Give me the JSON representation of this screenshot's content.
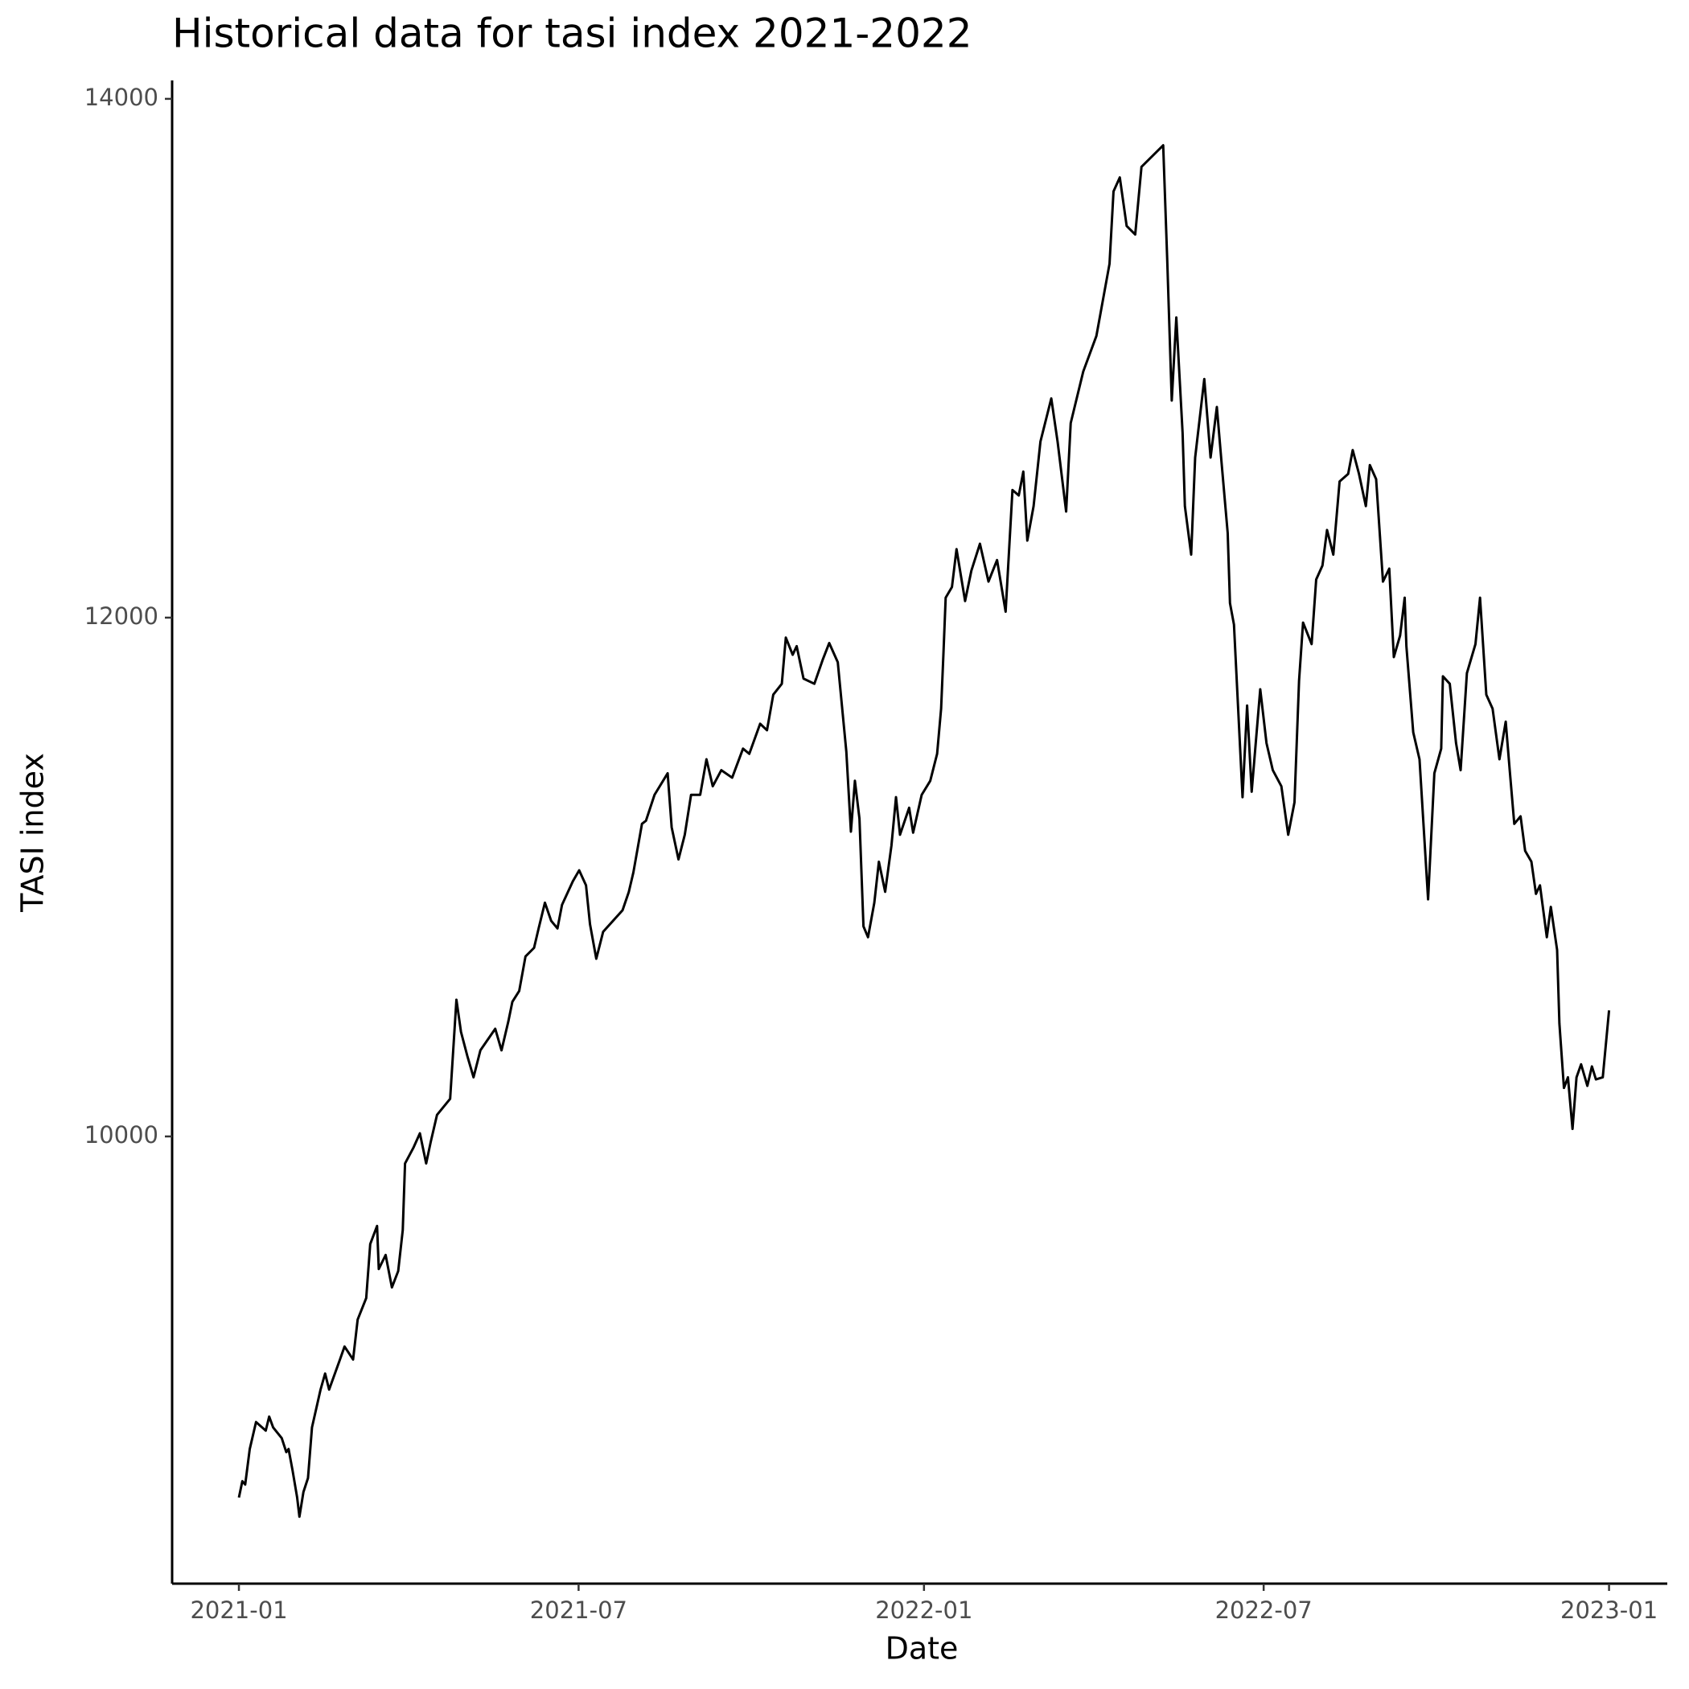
{
  "chart_data": {
    "type": "line",
    "title": "Historical data for tasi index 2021-2022",
    "x_label": "Date",
    "y_label": "TASI index",
    "color": "#000000",
    "grid": false,
    "xlim": [
      -1.17,
      25.02
    ],
    "xticks": [
      {
        "value": 0,
        "label": "2021-01"
      },
      {
        "value": 5.95,
        "label": "2021-07"
      },
      {
        "value": 12,
        "label": "2022-01"
      },
      {
        "value": 17.95,
        "label": "2022-07"
      },
      {
        "value": 24,
        "label": "2023-01"
      }
    ],
    "ylim": [
      8276,
      14071
    ],
    "yticks": [
      10000,
      12000,
      14000
    ],
    "x": [
      0.0,
      0.06,
      0.11,
      0.19,
      0.3,
      0.47,
      0.53,
      0.6,
      0.75,
      0.83,
      0.87,
      0.94,
      1.02,
      1.06,
      1.13,
      1.21,
      1.28,
      1.43,
      1.51,
      1.58,
      1.77,
      1.85,
      2.0,
      2.08,
      2.23,
      2.3,
      2.42,
      2.45,
      2.57,
      2.68,
      2.79,
      2.87,
      2.91,
      3.06,
      3.17,
      3.28,
      3.36,
      3.47,
      3.7,
      3.81,
      3.89,
      4.0,
      4.11,
      4.23,
      4.49,
      4.6,
      4.72,
      4.79,
      4.91,
      5.02,
      5.17,
      5.25,
      5.36,
      5.47,
      5.58,
      5.66,
      5.85,
      5.96,
      6.08,
      6.15,
      6.26,
      6.38,
      6.72,
      6.83,
      6.91,
      7.06,
      7.13,
      7.28,
      7.51,
      7.58,
      7.7,
      7.81,
      7.92,
      8.08,
      8.19,
      8.3,
      8.45,
      8.64,
      8.83,
      8.94,
      9.13,
      9.25,
      9.36,
      9.51,
      9.58,
      9.7,
      9.77,
      9.89,
      10.08,
      10.23,
      10.34,
      10.49,
      10.64,
      10.72,
      10.79,
      10.87,
      10.94,
      11.02,
      11.13,
      11.21,
      11.32,
      11.43,
      11.51,
      11.58,
      11.74,
      11.81,
      11.96,
      12.11,
      12.23,
      12.3,
      12.34,
      12.38,
      12.49,
      12.57,
      12.72,
      12.83,
      12.98,
      13.13,
      13.28,
      13.43,
      13.55,
      13.66,
      13.74,
      13.81,
      13.92,
      14.04,
      14.23,
      14.34,
      14.49,
      14.57,
      14.79,
      15.02,
      15.25,
      15.32,
      15.43,
      15.55,
      15.7,
      15.81,
      16.19,
      16.26,
      16.34,
      16.42,
      16.53,
      16.57,
      16.68,
      16.75,
      16.91,
      17.02,
      17.13,
      17.21,
      17.32,
      17.36,
      17.43,
      17.58,
      17.66,
      17.74,
      17.89,
      18.0,
      18.11,
      18.26,
      18.38,
      18.49,
      18.57,
      18.64,
      18.79,
      18.87,
      18.98,
      19.06,
      19.17,
      19.28,
      19.43,
      19.51,
      19.62,
      19.74,
      19.81,
      19.92,
      20.04,
      20.15,
      20.23,
      20.34,
      20.42,
      20.45,
      20.57,
      20.68,
      20.83,
      20.94,
      21.06,
      21.09,
      21.21,
      21.32,
      21.4,
      21.51,
      21.66,
      21.74,
      21.85,
      21.96,
      22.08,
      22.19,
      22.26,
      22.34,
      22.45,
      22.53,
      22.64,
      22.72,
      22.79,
      22.91,
      22.98,
      23.09,
      23.13,
      23.21,
      23.28,
      23.36,
      23.43,
      23.51,
      23.62,
      23.7,
      23.77,
      23.89,
      24.0
    ],
    "values": [
      8608,
      8671,
      8658,
      8795,
      8899,
      8866,
      8920,
      8878,
      8837,
      8783,
      8795,
      8712,
      8608,
      8534,
      8629,
      8683,
      8878,
      9024,
      9086,
      9024,
      9140,
      9190,
      9140,
      9294,
      9377,
      9585,
      9655,
      9489,
      9543,
      9418,
      9481,
      9639,
      9896,
      9958,
      10012,
      9896,
      9979,
      10083,
      10145,
      10527,
      10403,
      10311,
      10228,
      10332,
      10415,
      10332,
      10444,
      10519,
      10561,
      10694,
      10727,
      10802,
      10901,
      10831,
      10802,
      10893,
      10984,
      11026,
      10968,
      10818,
      10685,
      10789,
      10872,
      10943,
      11018,
      11205,
      11217,
      11317,
      11400,
      11192,
      11068,
      11163,
      11317,
      11317,
      11454,
      11350,
      11412,
      11383,
      11495,
      11475,
      11591,
      11566,
      11703,
      11745,
      11923,
      11857,
      11890,
      11765,
      11745,
      11840,
      11902,
      11828,
      11483,
      11175,
      11371,
      11225,
      10810,
      10768,
      10901,
      11059,
      10943,
      11121,
      11308,
      11163,
      11267,
      11171,
      11317,
      11371,
      11475,
      11649,
      11857,
      12077,
      12118,
      12264,
      12064,
      12181,
      12285,
      12139,
      12222,
      12023,
      12492,
      12471,
      12563,
      12297,
      12430,
      12679,
      12845,
      12679,
      12409,
      12750,
      12949,
      13086,
      13364,
      13643,
      13697,
      13510,
      13477,
      13738,
      13821,
      13385,
      12837,
      13157,
      12712,
      12430,
      12243,
      12617,
      12920,
      12617,
      12812,
      12604,
      12326,
      12056,
      11973,
      11308,
      11661,
      11329,
      11724,
      11516,
      11412,
      11350,
      11163,
      11288,
      11757,
      11981,
      11898,
      12147,
      12201,
      12338,
      12243,
      12525,
      12554,
      12646,
      12554,
      12430,
      12588,
      12534,
      12139,
      12189,
      11848,
      11931,
      12077,
      11890,
      11558,
      11454,
      10914,
      11400,
      11495,
      11774,
      11745,
      11516,
      11412,
      11786,
      11898,
      12077,
      11703,
      11649,
      11454,
      11599,
      11412,
      11205,
      11234,
      11101,
      11059,
      10935,
      10968,
      10768,
      10885,
      10719,
      10436,
      10187,
      10228,
      10029,
      10228,
      10278,
      10195,
      10270,
      10220,
      10228,
      10486
    ]
  }
}
